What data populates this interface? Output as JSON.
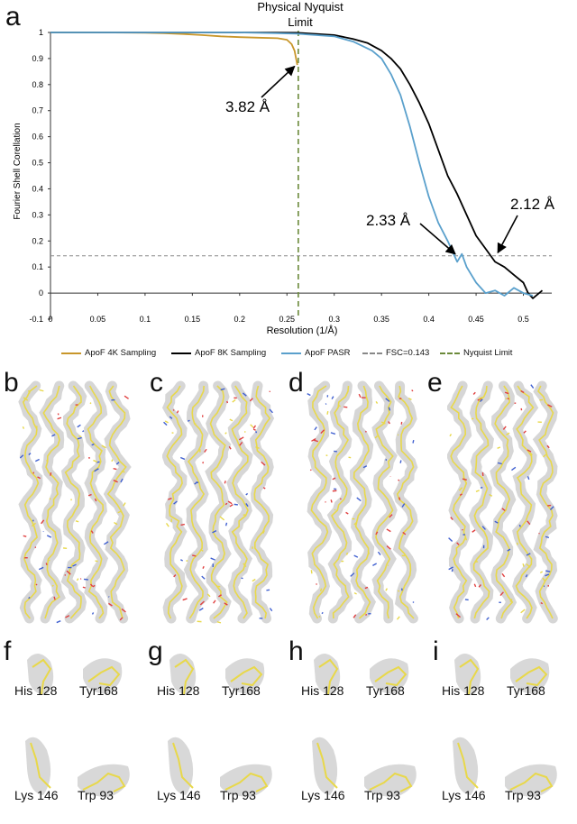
{
  "panels": {
    "a": "a",
    "b": "b",
    "c": "c",
    "d": "d",
    "e": "e",
    "f": "f",
    "g": "g",
    "h": "h",
    "i": "i"
  },
  "residues": {
    "top_left": "His 128",
    "top_right": "Tyr168",
    "bottom_left": "Lys 146",
    "bottom_right": "Trp 93"
  },
  "colors": {
    "apof4k": "#c8962a",
    "apof8k": "#000000",
    "pasr": "#5aa0cc",
    "fsc": "#888888",
    "nyquist": "#6b8a3a",
    "map": "#cfcfcf",
    "model": "#e8d84a"
  },
  "chart_data": {
    "type": "line",
    "title": "",
    "top_annotation_line1": "Physical Nyquist",
    "top_annotation_line2": "Limit",
    "xlabel": "Resolution (1/Å)",
    "ylabel": "Fourier Shell Corellation",
    "xlim": [
      0,
      0.53
    ],
    "ylim": [
      -0.1,
      1.0
    ],
    "xticks": [
      "0",
      "0.05",
      "0.1",
      "0.15",
      "0.2",
      "0.25",
      "0.3",
      "0.35",
      "0.4",
      "0.45",
      "0.5"
    ],
    "xtick_values": [
      0,
      0.05,
      0.1,
      0.15,
      0.2,
      0.25,
      0.3,
      0.35,
      0.4,
      0.45,
      0.5
    ],
    "yticks": [
      "-0.1",
      "0",
      "0.1",
      "0.2",
      "0.3",
      "0.4",
      "0.5",
      "0.6",
      "0.7",
      "0.8",
      "0.9",
      "1"
    ],
    "ytick_values": [
      -0.1,
      0,
      0.1,
      0.2,
      0.3,
      0.4,
      0.5,
      0.6,
      0.7,
      0.8,
      0.9,
      1.0
    ],
    "fsc_threshold": 0.143,
    "nyquist_limit": 0.262,
    "series": [
      {
        "name": "ApoF 4K Sampling",
        "color": "#c8962a",
        "x": [
          0,
          0.05,
          0.1,
          0.12,
          0.14,
          0.16,
          0.18,
          0.2,
          0.22,
          0.24,
          0.25,
          0.255,
          0.258,
          0.261
        ],
        "y": [
          1.0,
          1.0,
          0.999,
          0.997,
          0.994,
          0.99,
          0.985,
          0.982,
          0.98,
          0.978,
          0.972,
          0.955,
          0.93,
          0.875
        ]
      },
      {
        "name": "ApoF 8K Sampling",
        "color": "#000000",
        "x": [
          0,
          0.1,
          0.2,
          0.26,
          0.3,
          0.32,
          0.335,
          0.35,
          0.36,
          0.37,
          0.38,
          0.39,
          0.4,
          0.41,
          0.42,
          0.43,
          0.44,
          0.45,
          0.46,
          0.47,
          0.48,
          0.49,
          0.5,
          0.505,
          0.51,
          0.52
        ],
        "y": [
          1.0,
          1.0,
          1.0,
          0.999,
          0.99,
          0.975,
          0.96,
          0.93,
          0.9,
          0.86,
          0.8,
          0.73,
          0.65,
          0.55,
          0.45,
          0.38,
          0.3,
          0.22,
          0.17,
          0.12,
          0.1,
          0.07,
          0.04,
          0.0,
          -0.02,
          0.01
        ]
      },
      {
        "name": "ApoF PASR",
        "color": "#5aa0cc",
        "x": [
          0,
          0.1,
          0.2,
          0.26,
          0.3,
          0.32,
          0.34,
          0.35,
          0.36,
          0.37,
          0.38,
          0.39,
          0.4,
          0.41,
          0.42,
          0.425,
          0.43,
          0.435,
          0.44,
          0.45,
          0.46,
          0.47,
          0.48,
          0.49,
          0.5,
          0.51
        ],
        "y": [
          1.0,
          1.0,
          1.0,
          0.995,
          0.985,
          0.965,
          0.93,
          0.9,
          0.84,
          0.76,
          0.64,
          0.5,
          0.37,
          0.27,
          0.2,
          0.16,
          0.12,
          0.15,
          0.1,
          0.04,
          0.0,
          0.01,
          -0.01,
          0.02,
          0.0,
          -0.01
        ]
      },
      {
        "name": "FSC=0.143",
        "color": "#888888"
      },
      {
        "name": "Nyquist Limit",
        "color": "#6b8a3a"
      }
    ],
    "annotations": [
      {
        "text": "3.82 Å",
        "x": 0.262,
        "y": 0.875
      },
      {
        "text": "2.33 Å",
        "x": 0.429,
        "y": 0.143
      },
      {
        "text": "2.12 Å",
        "x": 0.472,
        "y": 0.143
      }
    ]
  }
}
